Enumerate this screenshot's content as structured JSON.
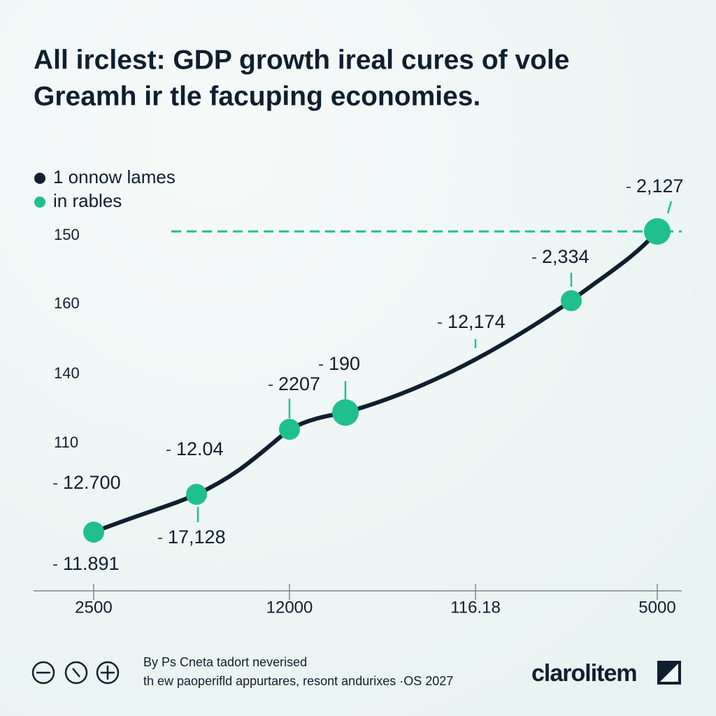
{
  "title": [
    "All irclest: GDP growth ireal cures of vole",
    "Greamh ir tle facuping economies."
  ],
  "legend": [
    {
      "label": "1 onnow lames",
      "color": "#0f1f2e"
    },
    {
      "label": "in rables",
      "color": "#1fc08d"
    }
  ],
  "y_labels": [
    "150",
    "160",
    "140",
    "110"
  ],
  "x_labels": [
    "2500",
    "12000",
    "116.18",
    "5000"
  ],
  "point_labels": [
    "12.700",
    "11.891",
    "12.04",
    "17,128",
    "2207",
    "190",
    "12,174",
    "2,334",
    "2,127"
  ],
  "footer": [
    "By Ps Cneta tadort neverised",
    "th ew paoperifld appurtares, resont andurixes ·OS 2027"
  ],
  "brand": "clarolitem"
}
